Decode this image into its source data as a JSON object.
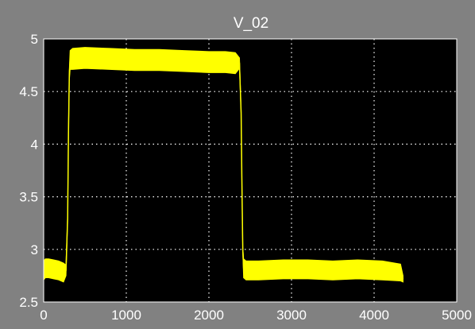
{
  "window": {
    "background_color": "#818181"
  },
  "chart_data": {
    "type": "line",
    "title": "V_02",
    "xlabel": "",
    "ylabel": "",
    "xlim": [
      0,
      5000
    ],
    "ylim": [
      2.5,
      5
    ],
    "x_ticks": [
      "0",
      "1000",
      "2000",
      "3000",
      "4000",
      "5000"
    ],
    "y_ticks": [
      "2.5",
      "3",
      "3.5",
      "4",
      "4.5",
      "5"
    ],
    "grid": true,
    "grid_style": "dotted",
    "background_color": "#000000",
    "line_color": "#ffff00",
    "text_color": "#ffffff",
    "noise_band": true,
    "series": [
      {
        "x": [
          0,
          20,
          60,
          120,
          180,
          240,
          270,
          290,
          300,
          310,
          320,
          350,
          500,
          800,
          1100,
          1400,
          1700,
          2000,
          2200,
          2320,
          2370,
          2390,
          2400,
          2410,
          2420,
          2450,
          2600,
          2900,
          3200,
          3500,
          3800,
          4100,
          4320,
          4350
        ],
        "y": [
          2.8,
          2.82,
          2.82,
          2.81,
          2.8,
          2.78,
          2.8,
          3.3,
          4.1,
          4.65,
          4.8,
          4.81,
          4.82,
          4.81,
          4.8,
          4.8,
          4.79,
          4.78,
          4.78,
          4.77,
          4.77,
          4.3,
          3.6,
          3.0,
          2.82,
          2.8,
          2.8,
          2.81,
          2.81,
          2.8,
          2.81,
          2.8,
          2.78,
          2.72
        ],
        "band": [
          0.09,
          0.09,
          0.09,
          0.09,
          0.09,
          0.09,
          0.05,
          0.02,
          0.02,
          0.05,
          0.09,
          0.1,
          0.1,
          0.1,
          0.1,
          0.1,
          0.1,
          0.1,
          0.1,
          0.1,
          0.05,
          0.02,
          0.02,
          0.02,
          0.09,
          0.09,
          0.09,
          0.09,
          0.09,
          0.09,
          0.09,
          0.09,
          0.08,
          0.03
        ]
      }
    ]
  }
}
